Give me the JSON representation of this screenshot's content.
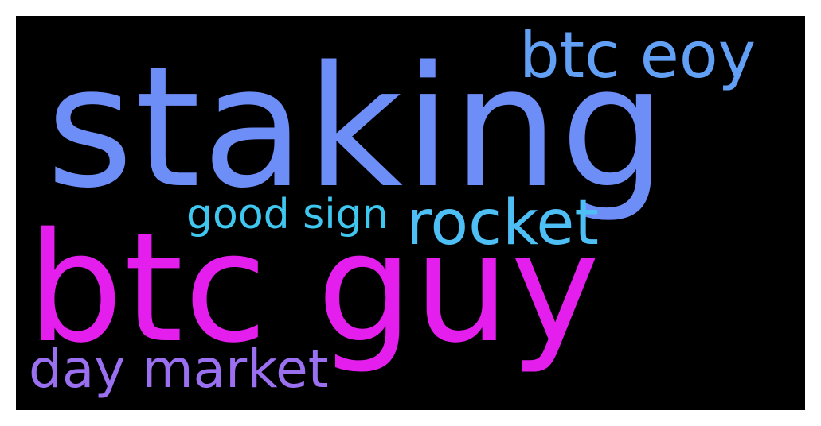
{
  "wordcloud": {
    "background": "#000000",
    "words": [
      {
        "id": "staking",
        "text": "staking",
        "color": "#6e8ef7"
      },
      {
        "id": "btc_guy",
        "text": "btc guy",
        "color": "#e41fee"
      },
      {
        "id": "btc_eoy",
        "text": "btc eoy",
        "color": "#62a0f6"
      },
      {
        "id": "rocket",
        "text": "rocket",
        "color": "#4dbff4"
      },
      {
        "id": "good_sign",
        "text": "good sign",
        "color": "#3fc7f0"
      },
      {
        "id": "day_market",
        "text": "day market",
        "color": "#9a6ff0"
      }
    ]
  }
}
